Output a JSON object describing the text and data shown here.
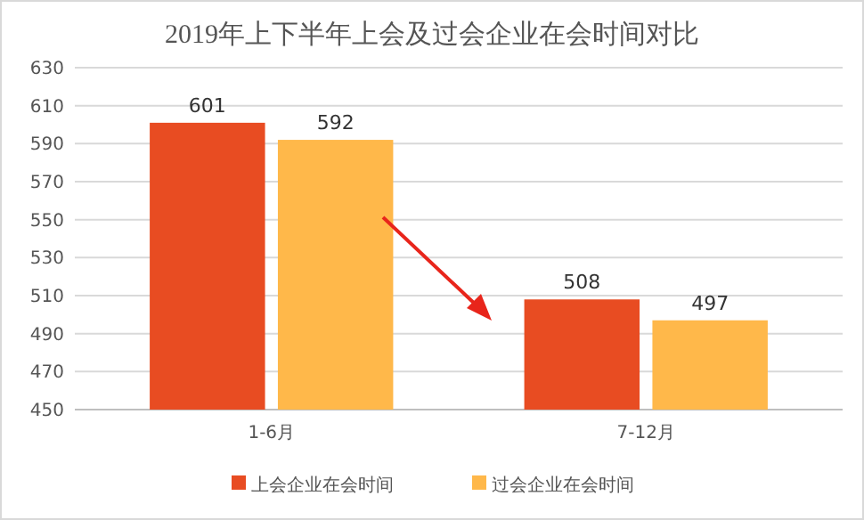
{
  "chart_data": {
    "type": "bar",
    "title": "2019年上下半年上会及过会企业在会时间对比",
    "categories": [
      "1-6月",
      "7-12月"
    ],
    "series": [
      {
        "name": "上会企业在会时间",
        "color": "#e84c22",
        "values": [
          601,
          508
        ]
      },
      {
        "name": "过会企业在会时间",
        "color": "#ffb84a",
        "values": [
          592,
          497
        ]
      }
    ],
    "ylim": [
      450,
      630
    ],
    "yticks": [
      450,
      470,
      490,
      510,
      530,
      550,
      570,
      590,
      610,
      630
    ],
    "grid": "y",
    "legend": "bottom",
    "data_labels": true
  }
}
